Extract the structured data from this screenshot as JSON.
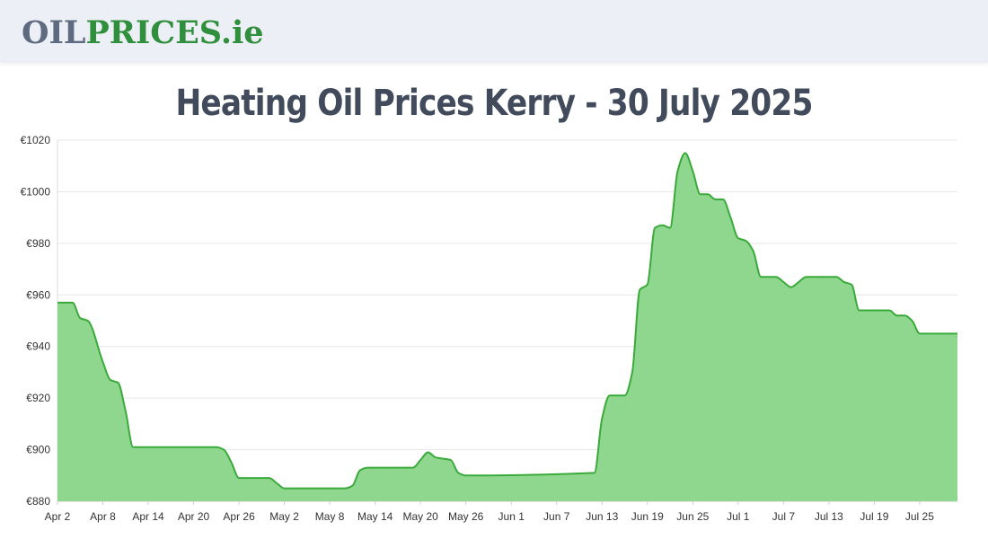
{
  "header": {
    "logo_part1": "OIL",
    "logo_part2": "PRICES",
    "logo_part3": ".ie"
  },
  "colors": {
    "header_bg": "#eceff5",
    "logo_grey": "#5d6a80",
    "logo_green": "#2f8f3c",
    "title": "#414b5c",
    "line": "#3aaa3a",
    "fill": "#8fd78f",
    "grid": "#e6e6e6"
  },
  "chart_data": {
    "type": "area",
    "title": "Heating Oil Prices Kerry - 30 July 2025",
    "xlabel": "",
    "ylabel": "",
    "ylim": [
      880,
      1020
    ],
    "yticks": [
      880,
      900,
      920,
      940,
      960,
      980,
      1000,
      1020
    ],
    "ytick_labels": [
      "€880",
      "€900",
      "€920",
      "€940",
      "€960",
      "€980",
      "€1000",
      "€1020"
    ],
    "x_start": "Apr 2",
    "x_end": "Jul 30",
    "xtick_labels": [
      "Apr 2",
      "Apr 8",
      "Apr 14",
      "Apr 20",
      "Apr 26",
      "May 2",
      "May 8",
      "May 14",
      "May 20",
      "May 26",
      "Jun 1",
      "Jun 7",
      "Jun 13",
      "Jun 19",
      "Jun 25",
      "Jul 1",
      "Jul 7",
      "Jul 13",
      "Jul 19",
      "Jul 25"
    ],
    "grid": true,
    "legend": "none",
    "series": [
      {
        "values": [
          {
            "x": "Apr 2",
            "y": 957
          },
          {
            "x": "Apr 4",
            "y": 957
          },
          {
            "x": "Apr 5",
            "y": 951
          },
          {
            "x": "Apr 6",
            "y": 950
          },
          {
            "x": "Apr 8",
            "y": 934
          },
          {
            "x": "Apr 9",
            "y": 927
          },
          {
            "x": "Apr 10",
            "y": 926
          },
          {
            "x": "Apr 11",
            "y": 915
          },
          {
            "x": "Apr 12",
            "y": 901
          },
          {
            "x": "Apr 13",
            "y": 901
          },
          {
            "x": "Apr 23",
            "y": 901
          },
          {
            "x": "Apr 24",
            "y": 900
          },
          {
            "x": "Apr 25",
            "y": 895
          },
          {
            "x": "Apr 26",
            "y": 889
          },
          {
            "x": "Apr 30",
            "y": 889
          },
          {
            "x": "May 1",
            "y": 887
          },
          {
            "x": "May 2",
            "y": 885
          },
          {
            "x": "May 10",
            "y": 885
          },
          {
            "x": "May 11",
            "y": 886
          },
          {
            "x": "May 12",
            "y": 892
          },
          {
            "x": "May 13",
            "y": 893
          },
          {
            "x": "May 19",
            "y": 893
          },
          {
            "x": "May 20",
            "y": 896
          },
          {
            "x": "May 21",
            "y": 899
          },
          {
            "x": "May 22",
            "y": 897
          },
          {
            "x": "May 24",
            "y": 896
          },
          {
            "x": "May 25",
            "y": 891
          },
          {
            "x": "May 26",
            "y": 890
          },
          {
            "x": "Jun 12",
            "y": 891
          },
          {
            "x": "Jun 13",
            "y": 912
          },
          {
            "x": "Jun 14",
            "y": 921
          },
          {
            "x": "Jun 16",
            "y": 921
          },
          {
            "x": "Jun 17",
            "y": 930
          },
          {
            "x": "Jun 18",
            "y": 962
          },
          {
            "x": "Jun 19",
            "y": 964
          },
          {
            "x": "Jun 20",
            "y": 986
          },
          {
            "x": "Jun 21",
            "y": 987
          },
          {
            "x": "Jun 22",
            "y": 986
          },
          {
            "x": "Jun 23",
            "y": 1008
          },
          {
            "x": "Jun 24",
            "y": 1015
          },
          {
            "x": "Jun 25",
            "y": 1008
          },
          {
            "x": "Jun 26",
            "y": 999
          },
          {
            "x": "Jun 27",
            "y": 999
          },
          {
            "x": "Jun 28",
            "y": 997
          },
          {
            "x": "Jun 29",
            "y": 997
          },
          {
            "x": "Jun 30",
            "y": 990
          },
          {
            "x": "Jul 1",
            "y": 982
          },
          {
            "x": "Jul 2",
            "y": 981
          },
          {
            "x": "Jul 3",
            "y": 977
          },
          {
            "x": "Jul 4",
            "y": 967
          },
          {
            "x": "Jul 5",
            "y": 967
          },
          {
            "x": "Jul 6",
            "y": 967
          },
          {
            "x": "Jul 7",
            "y": 965
          },
          {
            "x": "Jul 8",
            "y": 963
          },
          {
            "x": "Jul 9",
            "y": 965
          },
          {
            "x": "Jul 10",
            "y": 967
          },
          {
            "x": "Jul 14",
            "y": 967
          },
          {
            "x": "Jul 15",
            "y": 965
          },
          {
            "x": "Jul 16",
            "y": 964
          },
          {
            "x": "Jul 17",
            "y": 954
          },
          {
            "x": "Jul 18",
            "y": 954
          },
          {
            "x": "Jul 21",
            "y": 954
          },
          {
            "x": "Jul 22",
            "y": 952
          },
          {
            "x": "Jul 23",
            "y": 952
          },
          {
            "x": "Jul 24",
            "y": 950
          },
          {
            "x": "Jul 25",
            "y": 945
          },
          {
            "x": "Jul 30",
            "y": 945
          }
        ]
      }
    ]
  }
}
